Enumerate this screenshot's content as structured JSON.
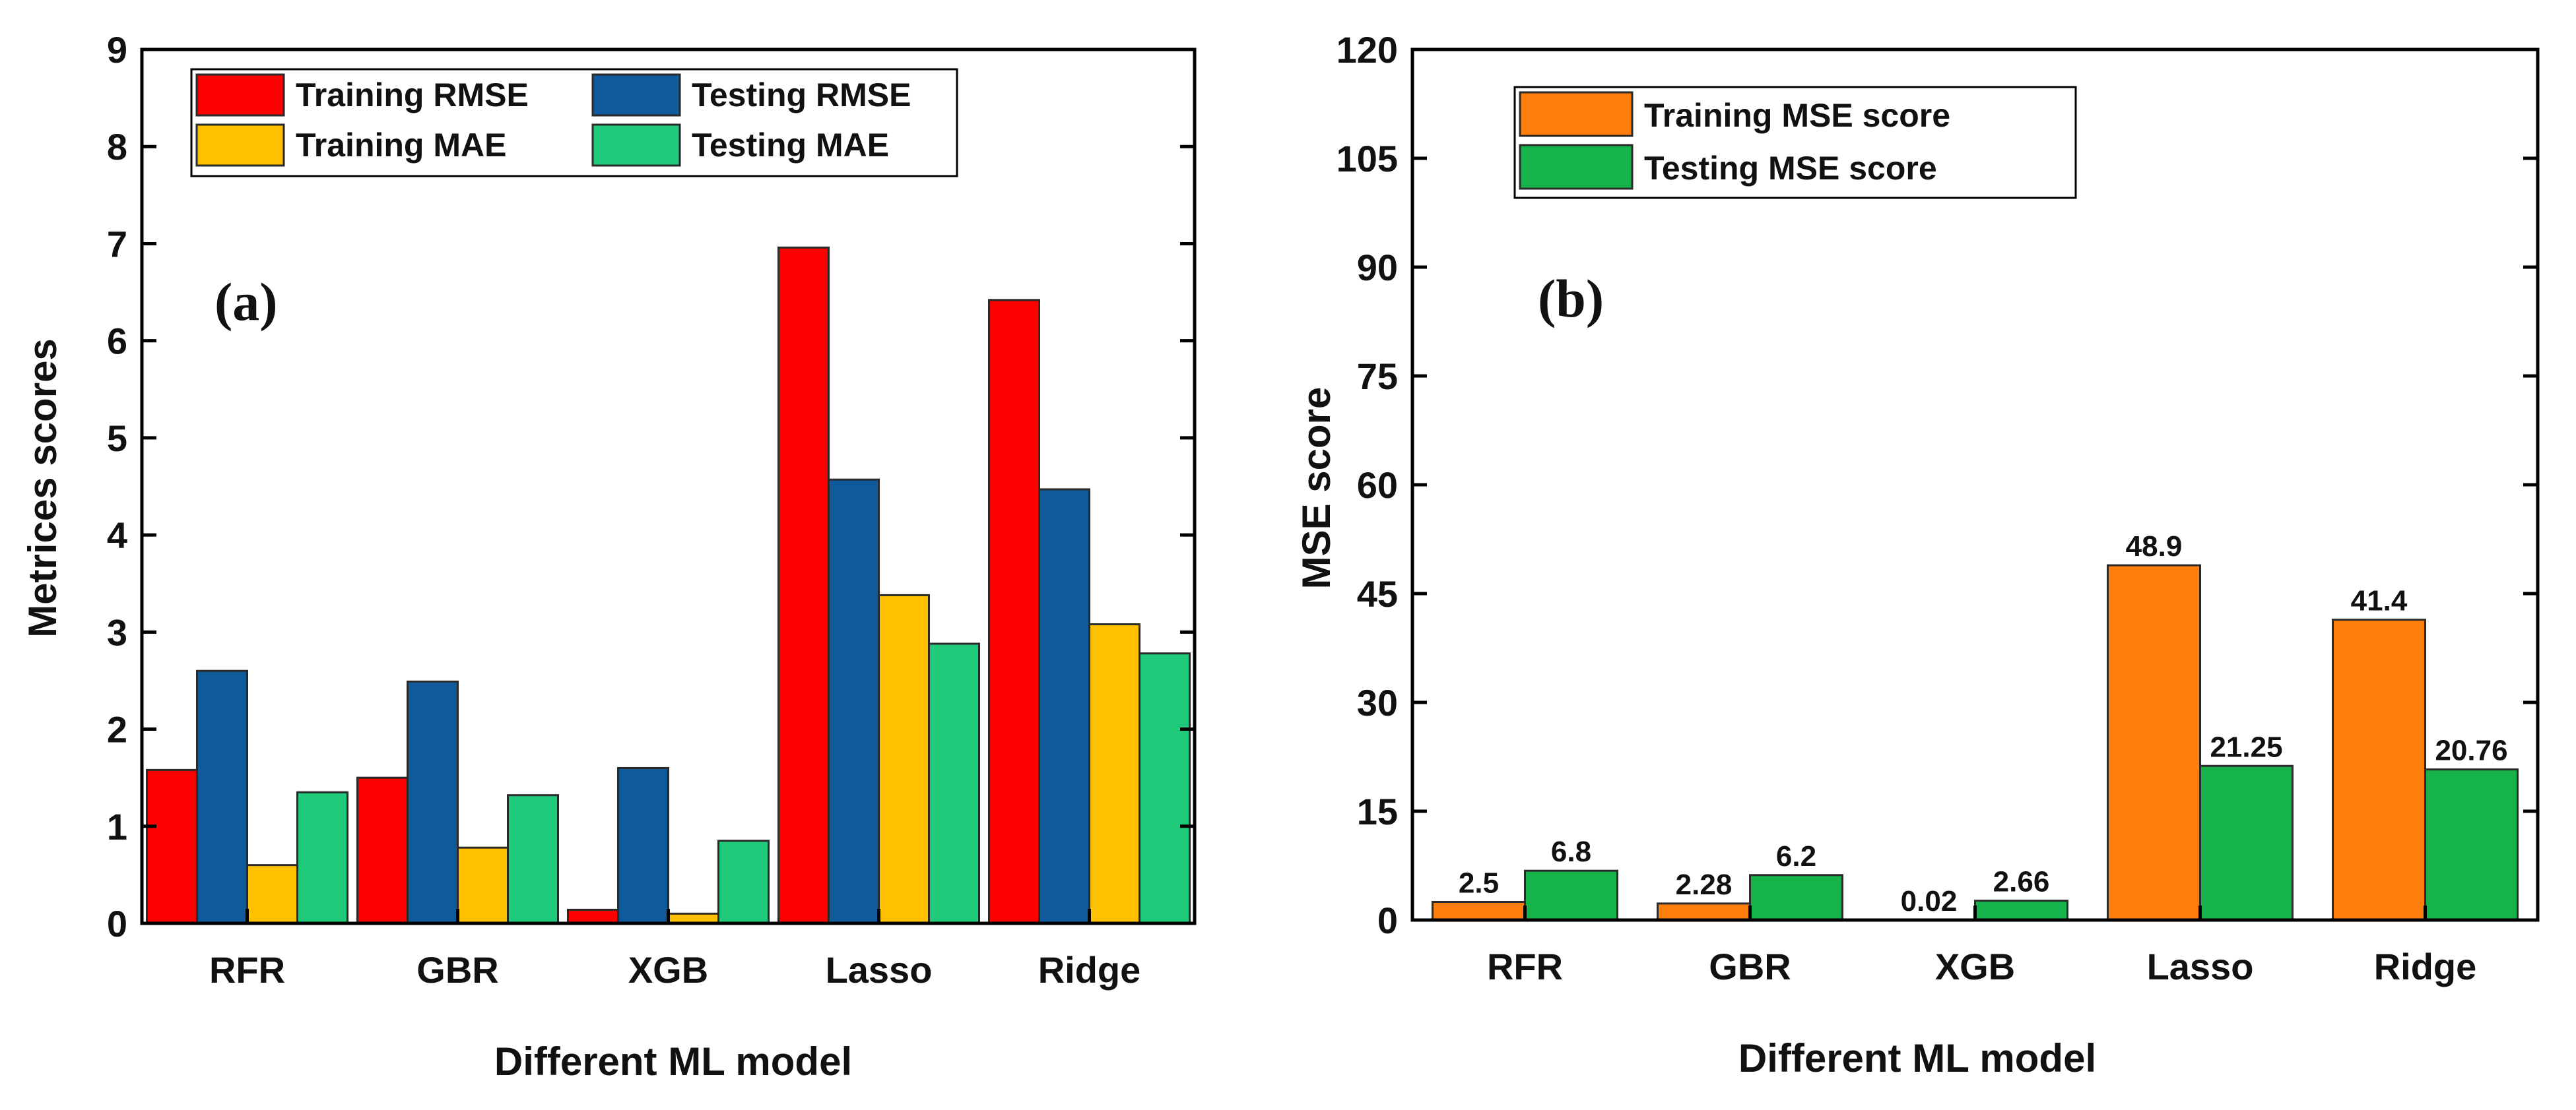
{
  "chart_data": [
    {
      "type": "bar",
      "panel_label": "(a)",
      "categories": [
        "RFR",
        "GBR",
        "XGB",
        "Lasso",
        "Ridge"
      ],
      "series": [
        {
          "name": "Training RMSE",
          "color": "#ff0000",
          "values": [
            1.58,
            1.5,
            0.14,
            6.96,
            6.42
          ]
        },
        {
          "name": "Testing RMSE",
          "color": "#0e5a9a",
          "values": [
            2.6,
            2.49,
            1.6,
            4.57,
            4.47
          ]
        },
        {
          "name": "Training MAE",
          "color": "#ffc000",
          "values": [
            0.6,
            0.78,
            0.1,
            3.38,
            3.08
          ]
        },
        {
          "name": "Testing MAE",
          "color": "#1fcb7a",
          "values": [
            1.35,
            1.32,
            0.85,
            2.88,
            2.78
          ]
        }
      ],
      "xlabel": "Different ML model",
      "ylabel": "Metrices scores",
      "ylim": [
        0,
        9
      ],
      "yticks": [
        "0",
        "1",
        "2",
        "3",
        "4",
        "5",
        "6",
        "7",
        "8",
        "9"
      ],
      "grid": false,
      "legend_position": "top-left",
      "legend_columns": 2
    },
    {
      "type": "bar",
      "panel_label": "(b)",
      "categories": [
        "RFR",
        "GBR",
        "XGB",
        "Lasso",
        "Ridge"
      ],
      "series": [
        {
          "name": "Training MSE score",
          "color": "#ff7f0e",
          "values": [
            2.5,
            2.28,
            0.02,
            48.9,
            41.4
          ],
          "labels": [
            "2.5",
            "2.28",
            "0.02",
            "48.9",
            "41.4"
          ]
        },
        {
          "name": "Testing MSE score",
          "color": "#16b34a",
          "values": [
            6.8,
            6.2,
            2.66,
            21.25,
            20.76
          ],
          "labels": [
            "6.8",
            "6.2",
            "2.66",
            "21.25",
            "20.76"
          ]
        }
      ],
      "xlabel": "Different ML model",
      "ylabel": "MSE score",
      "ylim": [
        0,
        120
      ],
      "yticks": [
        "0",
        "15",
        "30",
        "45",
        "60",
        "75",
        "90",
        "105",
        "120"
      ],
      "grid": false,
      "legend_position": "top-left",
      "legend_columns": 1
    }
  ]
}
